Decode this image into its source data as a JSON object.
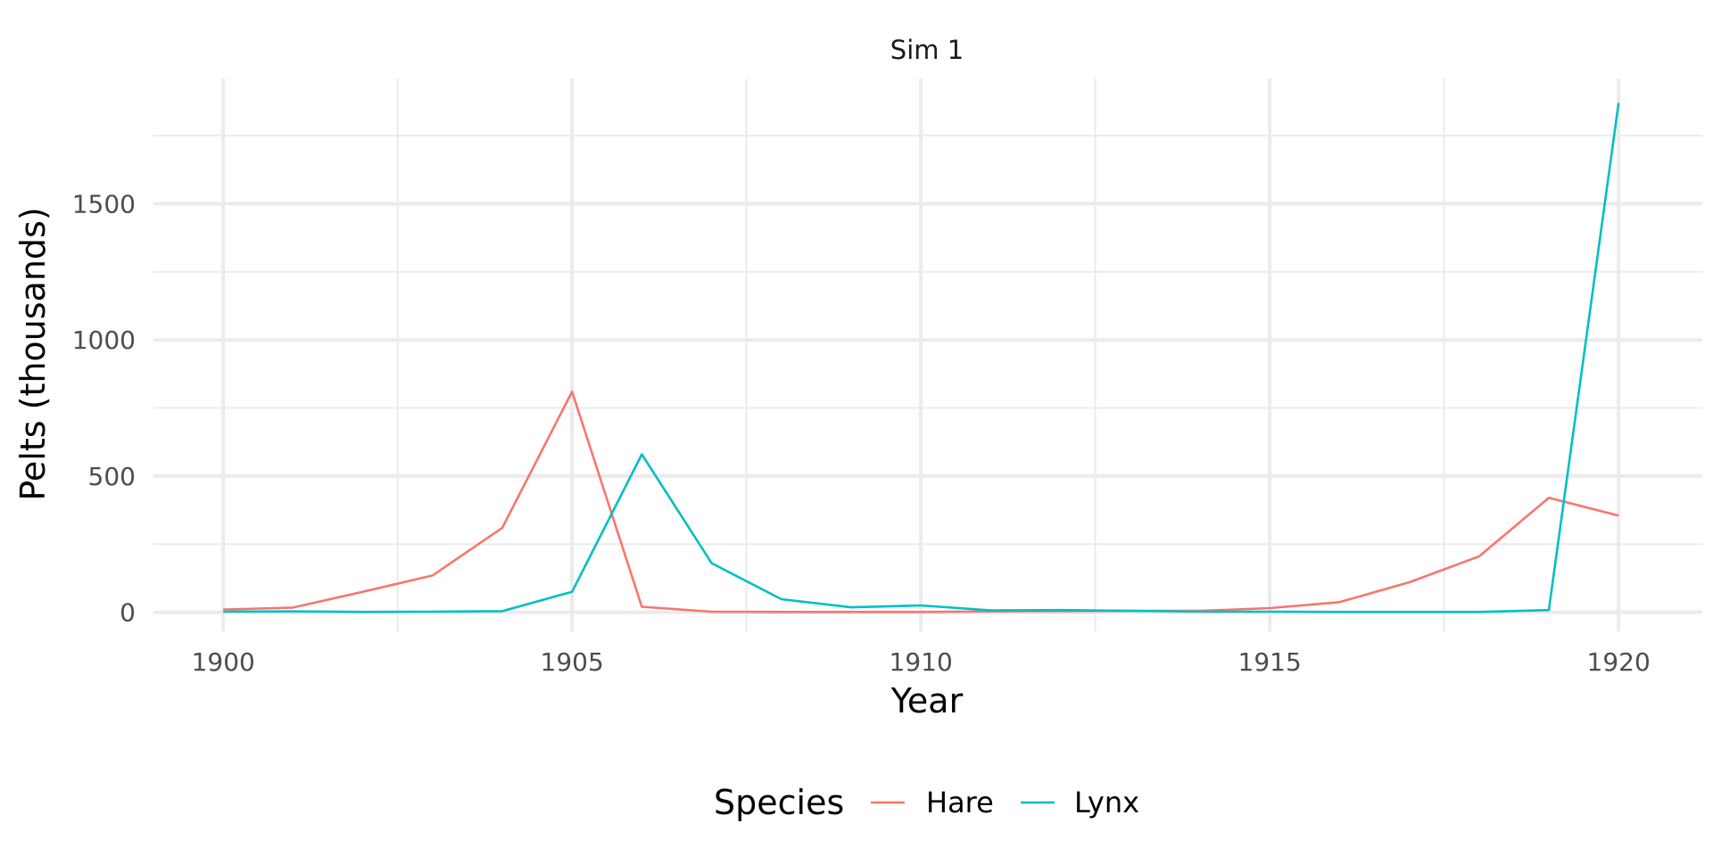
{
  "chart_data": {
    "type": "line",
    "title": "Sim 1",
    "xlabel": "Year",
    "ylabel": "Pelts (thousands)",
    "xlim": [
      1899,
      1921.2
    ],
    "ylim": [
      -70,
      1960
    ],
    "x_ticks": [
      1900,
      1905,
      1910,
      1915,
      1920
    ],
    "y_ticks": [
      0,
      500,
      1000,
      1500
    ],
    "grid": true,
    "legend": {
      "title": "Species",
      "position": "bottom"
    },
    "x": [
      1900,
      1901,
      1902,
      1903,
      1904,
      1905,
      1906,
      1907,
      1908,
      1909,
      1910,
      1911,
      1912,
      1913,
      1914,
      1915,
      1916,
      1917,
      1918,
      1919,
      1920
    ],
    "series": [
      {
        "name": "Hare",
        "color": "#F8766D",
        "values": [
          10,
          17,
          75,
          135,
          310,
          810,
          20,
          2,
          1,
          1,
          1,
          3,
          4,
          5,
          5,
          15,
          37,
          110,
          205,
          420,
          355
        ]
      },
      {
        "name": "Lynx",
        "color": "#00BFC4",
        "values": [
          2,
          3,
          1,
          2,
          4,
          75,
          580,
          180,
          48,
          18,
          25,
          7,
          8,
          5,
          2,
          2,
          1,
          1,
          1,
          8,
          1870
        ]
      }
    ]
  }
}
